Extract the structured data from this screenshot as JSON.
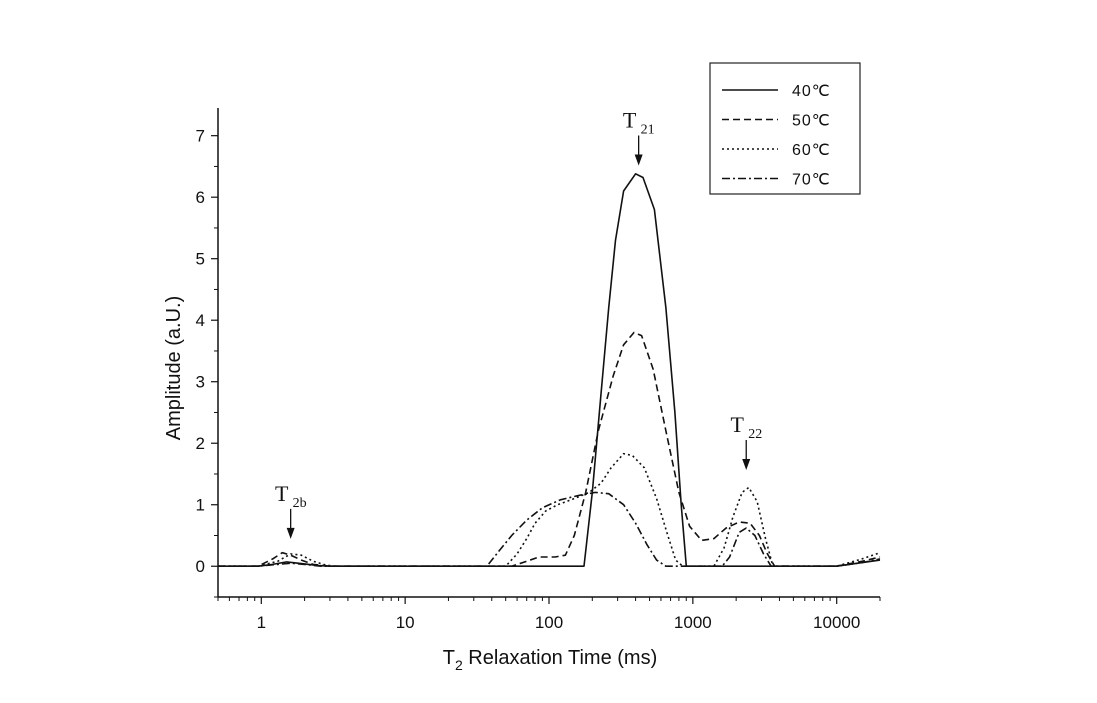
{
  "chart_data": {
    "type": "line",
    "xscale": "log",
    "xlabel": "T",
    "xlabel_sub": "2",
    "xlabel_rest": " Relaxation Time (ms)",
    "ylabel": "Amplitude (a.U.)",
    "xlim": [
      0.5,
      20000
    ],
    "ylim": [
      -0.5,
      7.45
    ],
    "xticks": [
      1,
      10,
      100,
      1000,
      10000
    ],
    "xtick_labels": [
      "1",
      "10",
      "100",
      "1000",
      "10000"
    ],
    "yticks": [
      0,
      1,
      2,
      3,
      4,
      5,
      6,
      7
    ],
    "ytick_labels": [
      "0",
      "1",
      "2",
      "3",
      "4",
      "5",
      "6",
      "7"
    ],
    "grid": false,
    "legend_position": "top-right",
    "series": [
      {
        "name": "40℃",
        "dash": "solid",
        "points": [
          [
            0.5,
            0
          ],
          [
            0.95,
            0
          ],
          [
            1.2,
            0.03
          ],
          [
            1.5,
            0.07
          ],
          [
            1.8,
            0.05
          ],
          [
            2.5,
            0.01
          ],
          [
            3,
            0
          ],
          [
            100,
            0
          ],
          [
            175,
            0
          ],
          [
            200,
            1.2
          ],
          [
            230,
            2.8
          ],
          [
            260,
            4.2
          ],
          [
            290,
            5.3
          ],
          [
            330,
            6.1
          ],
          [
            400,
            6.38
          ],
          [
            450,
            6.32
          ],
          [
            540,
            5.8
          ],
          [
            650,
            4.2
          ],
          [
            750,
            2.5
          ],
          [
            830,
            1.0
          ],
          [
            900,
            0
          ],
          [
            3500,
            0
          ],
          [
            10000,
            0
          ],
          [
            20000,
            0.1
          ]
        ]
      },
      {
        "name": "50℃",
        "dash": "dashed",
        "points": [
          [
            0.5,
            0
          ],
          [
            0.95,
            0
          ],
          [
            1.2,
            0.12
          ],
          [
            1.4,
            0.22
          ],
          [
            1.6,
            0.18
          ],
          [
            1.9,
            0.1
          ],
          [
            2.3,
            0.03
          ],
          [
            3,
            0
          ],
          [
            55,
            0
          ],
          [
            70,
            0.08
          ],
          [
            85,
            0.15
          ],
          [
            110,
            0.15
          ],
          [
            130,
            0.18
          ],
          [
            150,
            0.5
          ],
          [
            180,
            1.2
          ],
          [
            220,
            2.2
          ],
          [
            280,
            3.1
          ],
          [
            330,
            3.6
          ],
          [
            390,
            3.8
          ],
          [
            440,
            3.75
          ],
          [
            530,
            3.2
          ],
          [
            650,
            2.2
          ],
          [
            800,
            1.2
          ],
          [
            950,
            0.65
          ],
          [
            1150,
            0.42
          ],
          [
            1400,
            0.45
          ],
          [
            1700,
            0.62
          ],
          [
            2100,
            0.72
          ],
          [
            2500,
            0.7
          ],
          [
            2900,
            0.5
          ],
          [
            3300,
            0.2
          ],
          [
            3700,
            0
          ],
          [
            10000,
            0
          ],
          [
            15000,
            0.08
          ],
          [
            20000,
            0.15
          ]
        ]
      },
      {
        "name": "60℃",
        "dash": "dotted",
        "points": [
          [
            0.5,
            0
          ],
          [
            0.95,
            0
          ],
          [
            1.3,
            0.08
          ],
          [
            1.6,
            0.2
          ],
          [
            1.9,
            0.18
          ],
          [
            2.3,
            0.08
          ],
          [
            2.8,
            0.02
          ],
          [
            3.2,
            0
          ],
          [
            50,
            0
          ],
          [
            60,
            0.2
          ],
          [
            70,
            0.45
          ],
          [
            80,
            0.7
          ],
          [
            95,
            0.9
          ],
          [
            115,
            1.0
          ],
          [
            150,
            1.1
          ],
          [
            190,
            1.2
          ],
          [
            230,
            1.35
          ],
          [
            270,
            1.6
          ],
          [
            330,
            1.83
          ],
          [
            380,
            1.8
          ],
          [
            460,
            1.6
          ],
          [
            560,
            1.1
          ],
          [
            670,
            0.5
          ],
          [
            760,
            0.1
          ],
          [
            850,
            0
          ],
          [
            1100,
            0
          ],
          [
            1400,
            0
          ],
          [
            1650,
            0.3
          ],
          [
            1900,
            0.8
          ],
          [
            2200,
            1.2
          ],
          [
            2450,
            1.28
          ],
          [
            2800,
            1.05
          ],
          [
            3200,
            0.45
          ],
          [
            3600,
            0
          ],
          [
            10000,
            0
          ],
          [
            15000,
            0.12
          ],
          [
            20000,
            0.22
          ]
        ]
      },
      {
        "name": "70℃",
        "dash": "dashdot",
        "points": [
          [
            0.5,
            0
          ],
          [
            0.95,
            0
          ],
          [
            1.3,
            0.03
          ],
          [
            1.6,
            0.05
          ],
          [
            2,
            0.03
          ],
          [
            2.6,
            0
          ],
          [
            37,
            0
          ],
          [
            45,
            0.25
          ],
          [
            55,
            0.5
          ],
          [
            70,
            0.75
          ],
          [
            90,
            0.95
          ],
          [
            120,
            1.08
          ],
          [
            160,
            1.15
          ],
          [
            210,
            1.2
          ],
          [
            260,
            1.18
          ],
          [
            330,
            1.0
          ],
          [
            400,
            0.7
          ],
          [
            480,
            0.35
          ],
          [
            560,
            0.1
          ],
          [
            650,
            0
          ],
          [
            1000,
            0
          ],
          [
            1600,
            0
          ],
          [
            1800,
            0.15
          ],
          [
            2100,
            0.55
          ],
          [
            2350,
            0.62
          ],
          [
            2700,
            0.5
          ],
          [
            3100,
            0.2
          ],
          [
            3500,
            0
          ],
          [
            10000,
            0
          ],
          [
            15000,
            0.06
          ],
          [
            20000,
            0.12
          ]
        ]
      }
    ],
    "annotations": [
      {
        "label": "T",
        "sub": "21",
        "x": 420,
        "y": 6.45
      },
      {
        "label": "T",
        "sub": "22",
        "x": 2350,
        "y": 1.5
      },
      {
        "label": "T",
        "sub": "2b",
        "x": 1.6,
        "y": 0.38
      }
    ]
  }
}
